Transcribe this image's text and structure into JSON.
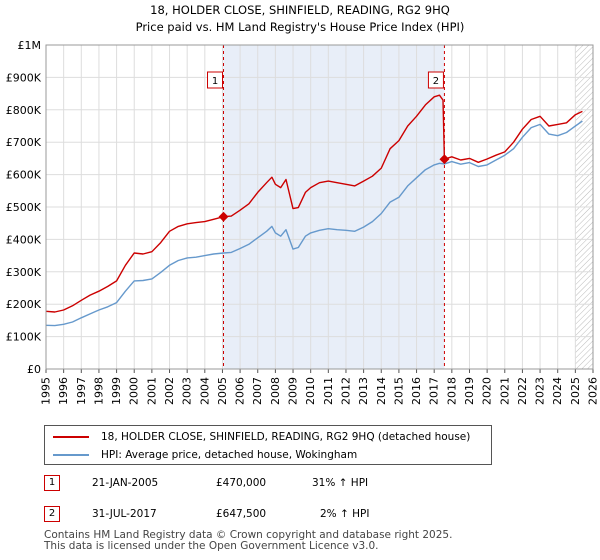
{
  "chart_data": {
    "type": "line",
    "title": "18, HOLDER CLOSE, SHINFIELD, READING, RG2 9HQ",
    "subtitle": "Price paid vs. HM Land Registry's House Price Index (HPI)",
    "xlim": [
      1995,
      2026
    ],
    "ylim": [
      0,
      1000000
    ],
    "x_ticks": [
      1995,
      1996,
      1997,
      1998,
      1999,
      2000,
      2001,
      2002,
      2003,
      2004,
      2005,
      2006,
      2007,
      2008,
      2009,
      2010,
      2011,
      2012,
      2013,
      2014,
      2015,
      2016,
      2017,
      2018,
      2019,
      2020,
      2021,
      2022,
      2023,
      2024,
      2025,
      2026
    ],
    "y_ticks": [
      0,
      100000,
      200000,
      300000,
      400000,
      500000,
      600000,
      700000,
      800000,
      900000,
      1000000
    ],
    "y_tick_labels": [
      "£0",
      "£100K",
      "£200K",
      "£300K",
      "£400K",
      "£500K",
      "£600K",
      "£700K",
      "£800K",
      "£900K",
      "£1M"
    ],
    "grid": true,
    "shaded_span": [
      2005.06,
      2017.58
    ],
    "hatched_from": 2025.0,
    "series": [
      {
        "name": "18, HOLDER CLOSE, SHINFIELD, READING, RG2 9HQ (detached house)",
        "color": "#cc0000",
        "x": [
          1995,
          1995.5,
          1996,
          1996.5,
          1997,
          1997.5,
          1998,
          1998.5,
          1999,
          1999.5,
          2000,
          2000.5,
          2001,
          2001.5,
          2002,
          2002.5,
          2003,
          2003.5,
          2004,
          2004.5,
          2005.06,
          2005.5,
          2006,
          2006.5,
          2007,
          2007.5,
          2007.8,
          2008,
          2008.3,
          2008.6,
          2009,
          2009.3,
          2009.7,
          2010,
          2010.5,
          2011,
          2011.5,
          2012,
          2012.5,
          2013,
          2013.5,
          2014,
          2014.5,
          2015,
          2015.5,
          2016,
          2016.5,
          2017,
          2017.3,
          2017.5,
          2017.58,
          2018,
          2018.5,
          2019,
          2019.5,
          2020,
          2020.5,
          2021,
          2021.5,
          2022,
          2022.5,
          2023,
          2023.5,
          2024,
          2024.5,
          2025,
          2025.4
        ],
        "values": [
          178000,
          176000,
          182000,
          195000,
          212000,
          228000,
          240000,
          255000,
          272000,
          320000,
          358000,
          355000,
          362000,
          390000,
          425000,
          440000,
          448000,
          452000,
          455000,
          462000,
          470000,
          472000,
          490000,
          510000,
          545000,
          575000,
          592000,
          570000,
          560000,
          585000,
          495000,
          498000,
          545000,
          560000,
          575000,
          580000,
          575000,
          570000,
          565000,
          580000,
          595000,
          620000,
          680000,
          705000,
          750000,
          780000,
          815000,
          840000,
          845000,
          830000,
          647500,
          655000,
          645000,
          650000,
          638000,
          648000,
          660000,
          670000,
          700000,
          740000,
          770000,
          780000,
          750000,
          755000,
          760000,
          785000,
          795000
        ]
      },
      {
        "name": "HPI: Average price, detached house, Wokingham",
        "color": "#6699cc",
        "x": [
          1995,
          1995.5,
          1996,
          1996.5,
          1997,
          1997.5,
          1998,
          1998.5,
          1999,
          1999.5,
          2000,
          2000.5,
          2001,
          2001.5,
          2002,
          2002.5,
          2003,
          2003.5,
          2004,
          2004.5,
          2005.06,
          2005.5,
          2006,
          2006.5,
          2007,
          2007.5,
          2007.8,
          2008,
          2008.3,
          2008.6,
          2009,
          2009.3,
          2009.7,
          2010,
          2010.5,
          2011,
          2011.5,
          2012,
          2012.5,
          2013,
          2013.5,
          2014,
          2014.5,
          2015,
          2015.5,
          2016,
          2016.5,
          2017,
          2017.3,
          2017.58,
          2018,
          2018.5,
          2019,
          2019.5,
          2020,
          2020.5,
          2021,
          2021.5,
          2022,
          2022.5,
          2023,
          2023.5,
          2024,
          2024.5,
          2025,
          2025.4
        ],
        "values": [
          135000,
          134000,
          138000,
          145000,
          158000,
          170000,
          182000,
          192000,
          205000,
          240000,
          272000,
          273000,
          278000,
          298000,
          320000,
          335000,
          343000,
          345000,
          350000,
          355000,
          358000,
          360000,
          372000,
          385000,
          405000,
          425000,
          440000,
          420000,
          410000,
          430000,
          370000,
          375000,
          410000,
          420000,
          428000,
          433000,
          430000,
          428000,
          425000,
          438000,
          455000,
          480000,
          515000,
          530000,
          565000,
          590000,
          615000,
          630000,
          635000,
          633000,
          640000,
          632000,
          637000,
          625000,
          630000,
          645000,
          660000,
          680000,
          715000,
          745000,
          755000,
          725000,
          720000,
          730000,
          750000,
          765000
        ]
      }
    ],
    "annotations": [
      {
        "label": "1",
        "x": 2005.06,
        "y": 470000
      },
      {
        "label": "2",
        "x": 2017.58,
        "y": 647500
      }
    ]
  },
  "legend": {
    "property_label": "18, HOLDER CLOSE, SHINFIELD, READING, RG2 9HQ (detached house)",
    "hpi_label": "HPI: Average price, detached house, Wokingham"
  },
  "transactions": [
    {
      "num": "1",
      "date": "21-JAN-2005",
      "price": "£470,000",
      "hpi": "31% ↑ HPI"
    },
    {
      "num": "2",
      "date": "31-JUL-2017",
      "price": "£647,500",
      "hpi": "2% ↑ HPI"
    }
  ],
  "footer": {
    "line1": "Contains HM Land Registry data © Crown copyright and database right 2025.",
    "line2": "This data is licensed under the Open Government Licence v3.0."
  }
}
